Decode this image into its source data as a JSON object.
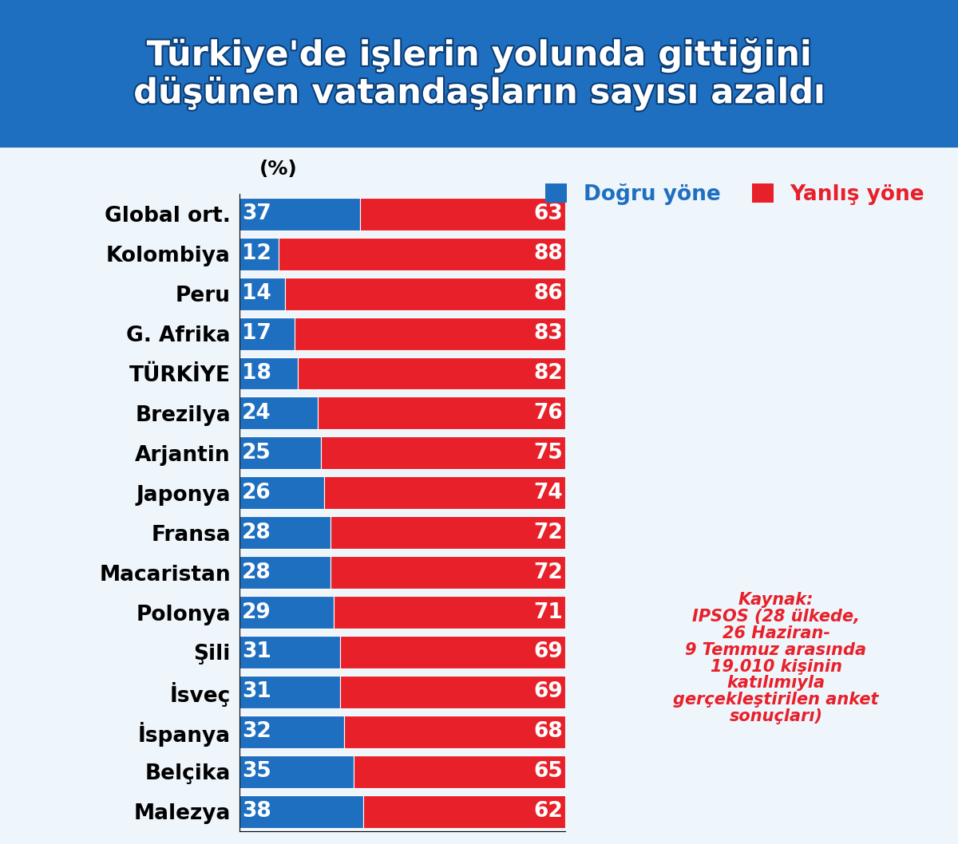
{
  "chart_data": {
    "type": "bar",
    "orientation": "horizontal",
    "stacked": true,
    "title": "Türkiye'de işlerin yolunda gittiğini\ndüşünen vatandaşların sayısı azaldı",
    "xlabel": "(%)",
    "categories": [
      "Global ort.",
      "Kolombiya",
      "Peru",
      "G. Afrika",
      "TÜRKİYE",
      "Brezilya",
      "Arjantin",
      "Japonya",
      "Fransa",
      "Macaristan",
      "Polonya",
      "Şili",
      "İsveç",
      "İspanya",
      "Belçika",
      "Malezya"
    ],
    "series": [
      {
        "name": "Doğru yöne",
        "color": "#1f6fc0",
        "values": [
          37,
          12,
          14,
          17,
          18,
          24,
          25,
          26,
          28,
          28,
          29,
          31,
          31,
          32,
          35,
          38
        ]
      },
      {
        "name": "Yanlış yöne",
        "color": "#e8202a",
        "values": [
          63,
          88,
          86,
          83,
          82,
          76,
          75,
          74,
          72,
          72,
          71,
          69,
          69,
          68,
          65,
          62
        ]
      }
    ],
    "xlim": [
      0,
      100
    ],
    "data_labels": true,
    "tick_labels": "y",
    "legend": "upper right",
    "grid": false,
    "annotations": [
      "Kaynak:\nIPSOS (28 ülkede,\n26 Haziran-\n9 Temmuz arasında\n19.010 kişinin\nkatılımıyla\ngerçekleştirilen anket\nsonuçları)"
    ]
  }
}
